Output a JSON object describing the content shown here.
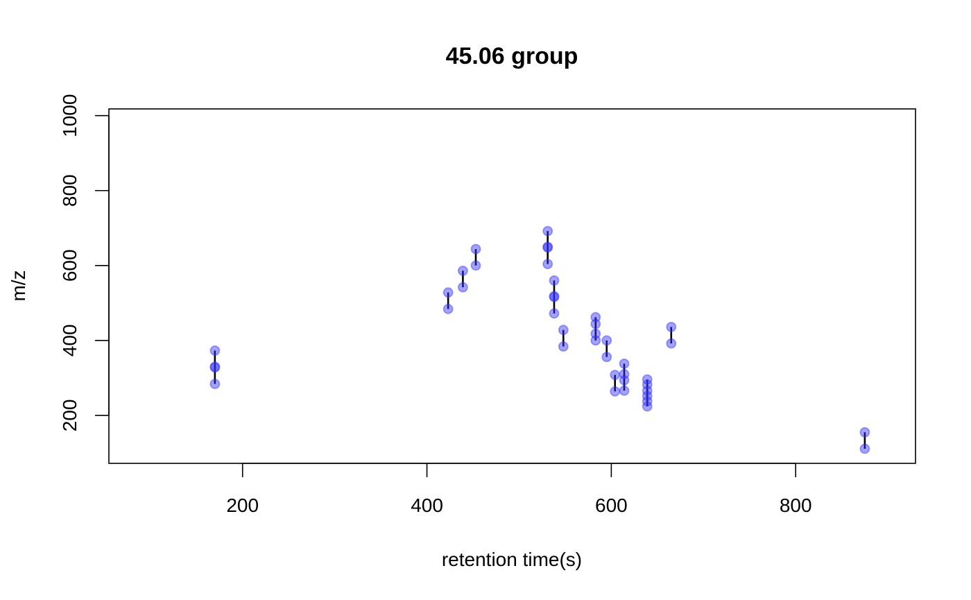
{
  "chart_data": {
    "type": "scatter",
    "title": "45.06 group",
    "xlabel": "retention time(s)",
    "ylabel": "m/z",
    "xlim": [
      55,
      930
    ],
    "ylim": [
      72,
      1018
    ],
    "x_ticks": [
      200,
      400,
      600,
      800
    ],
    "y_ticks": [
      200,
      400,
      600,
      800,
      1000
    ],
    "grid": false,
    "point_color": "#3333ff",
    "point_opacity": 0.45,
    "segment_color": "#000000",
    "points": [
      {
        "x": 170,
        "y": 373
      },
      {
        "x": 170,
        "y": 328
      },
      {
        "x": 170,
        "y": 330
      },
      {
        "x": 170,
        "y": 284
      },
      {
        "x": 423,
        "y": 528
      },
      {
        "x": 423,
        "y": 484
      },
      {
        "x": 439,
        "y": 586
      },
      {
        "x": 439,
        "y": 542
      },
      {
        "x": 453,
        "y": 644
      },
      {
        "x": 453,
        "y": 600
      },
      {
        "x": 531,
        "y": 692
      },
      {
        "x": 531,
        "y": 648
      },
      {
        "x": 531,
        "y": 650
      },
      {
        "x": 531,
        "y": 604
      },
      {
        "x": 538,
        "y": 560
      },
      {
        "x": 538,
        "y": 516
      },
      {
        "x": 538,
        "y": 518
      },
      {
        "x": 538,
        "y": 472
      },
      {
        "x": 548,
        "y": 428
      },
      {
        "x": 548,
        "y": 384
      },
      {
        "x": 583,
        "y": 462
      },
      {
        "x": 583,
        "y": 444
      },
      {
        "x": 583,
        "y": 418
      },
      {
        "x": 583,
        "y": 400
      },
      {
        "x": 595,
        "y": 400
      },
      {
        "x": 595,
        "y": 356
      },
      {
        "x": 604,
        "y": 308
      },
      {
        "x": 604,
        "y": 264
      },
      {
        "x": 614,
        "y": 338
      },
      {
        "x": 614,
        "y": 310
      },
      {
        "x": 614,
        "y": 294
      },
      {
        "x": 614,
        "y": 266
      },
      {
        "x": 639,
        "y": 296
      },
      {
        "x": 639,
        "y": 282
      },
      {
        "x": 639,
        "y": 266
      },
      {
        "x": 639,
        "y": 252
      },
      {
        "x": 639,
        "y": 238
      },
      {
        "x": 639,
        "y": 224
      },
      {
        "x": 665,
        "y": 436
      },
      {
        "x": 665,
        "y": 392
      },
      {
        "x": 875,
        "y": 155
      },
      {
        "x": 875,
        "y": 111
      }
    ],
    "segments": [
      {
        "x": 170,
        "y1": 284,
        "y2": 373
      },
      {
        "x": 423,
        "y1": 484,
        "y2": 528
      },
      {
        "x": 439,
        "y1": 542,
        "y2": 586
      },
      {
        "x": 453,
        "y1": 600,
        "y2": 644
      },
      {
        "x": 531,
        "y1": 604,
        "y2": 692
      },
      {
        "x": 538,
        "y1": 472,
        "y2": 560
      },
      {
        "x": 548,
        "y1": 384,
        "y2": 428
      },
      {
        "x": 583,
        "y1": 400,
        "y2": 462
      },
      {
        "x": 595,
        "y1": 356,
        "y2": 400
      },
      {
        "x": 604,
        "y1": 264,
        "y2": 308
      },
      {
        "x": 614,
        "y1": 266,
        "y2": 338
      },
      {
        "x": 639,
        "y1": 224,
        "y2": 296
      },
      {
        "x": 665,
        "y1": 392,
        "y2": 436
      },
      {
        "x": 875,
        "y1": 111,
        "y2": 155
      }
    ]
  }
}
